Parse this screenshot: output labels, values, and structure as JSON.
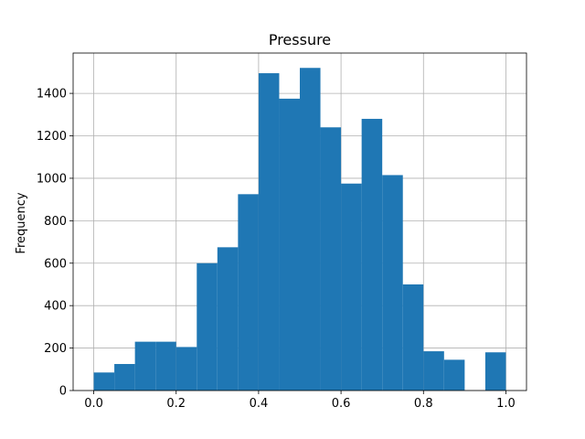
{
  "chart_data": {
    "type": "bar",
    "title": "Pressure",
    "xlabel": "",
    "ylabel": "Frequency",
    "xlim": [
      -0.05,
      1.05
    ],
    "ylim": [
      0,
      1590
    ],
    "grid": true,
    "bar_color": "#1f77b4",
    "bin_width": 0.05,
    "bin_starts": [
      0.0,
      0.05,
      0.1,
      0.15,
      0.2,
      0.25,
      0.3,
      0.35,
      0.4,
      0.45,
      0.5,
      0.55,
      0.6,
      0.65,
      0.7,
      0.75,
      0.8,
      0.85,
      0.9,
      0.95
    ],
    "values": [
      85,
      125,
      230,
      230,
      205,
      600,
      675,
      925,
      1495,
      1375,
      1520,
      1240,
      975,
      1280,
      1015,
      500,
      185,
      145,
      0,
      180
    ],
    "x_ticks": [
      0.0,
      0.2,
      0.4,
      0.6,
      0.8,
      1.0
    ],
    "x_tick_labels": [
      "0.0",
      "0.2",
      "0.4",
      "0.6",
      "0.8",
      "1.0"
    ],
    "y_ticks": [
      0,
      200,
      400,
      600,
      800,
      1000,
      1200,
      1400
    ],
    "y_tick_labels": [
      "0",
      "200",
      "400",
      "600",
      "800",
      "1000",
      "1200",
      "1400"
    ]
  }
}
